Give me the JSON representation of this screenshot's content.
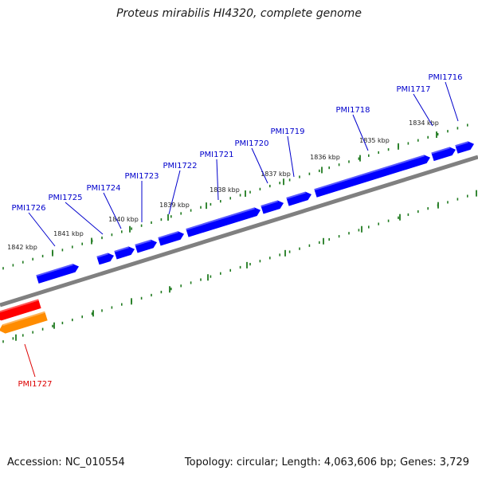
{
  "title": "Proteus mirabilis HI4320, complete genome",
  "footer": {
    "accession": "Accession: NC_010554",
    "summary": "Topology: circular; Length: 4,063,606 bp; Genes: 3,729"
  },
  "colors": {
    "forward_gene": "#0000ff",
    "reverse_gene": "#ff0000",
    "reverse_feature": "#ff8c00",
    "backbone": "#808080",
    "tick": "#1f7a1f",
    "gene_label_forward": "#0000cc",
    "gene_label_reverse": "#dd0000",
    "ruler_label": "#222222"
  },
  "ruler_labels": [
    "1834 kbp",
    "1835 kbp",
    "1836 kbp",
    "1837 kbp",
    "1838 kbp",
    "1839 kbp",
    "1840 kbp",
    "1841 kbp",
    "1842 kbp"
  ],
  "gene_labels": [
    {
      "name": "PMI1716",
      "strand": "forward"
    },
    {
      "name": "PMI1717",
      "strand": "forward"
    },
    {
      "name": "PMI1718",
      "strand": "forward"
    },
    {
      "name": "PMI1719",
      "strand": "forward"
    },
    {
      "name": "PMI1720",
      "strand": "forward"
    },
    {
      "name": "PMI1721",
      "strand": "forward"
    },
    {
      "name": "PMI1722",
      "strand": "forward"
    },
    {
      "name": "PMI1723",
      "strand": "forward"
    },
    {
      "name": "PMI1724",
      "strand": "forward"
    },
    {
      "name": "PMI1725",
      "strand": "forward"
    },
    {
      "name": "PMI1726",
      "strand": "forward"
    },
    {
      "name": "PMI1727",
      "strand": "reverse"
    }
  ]
}
